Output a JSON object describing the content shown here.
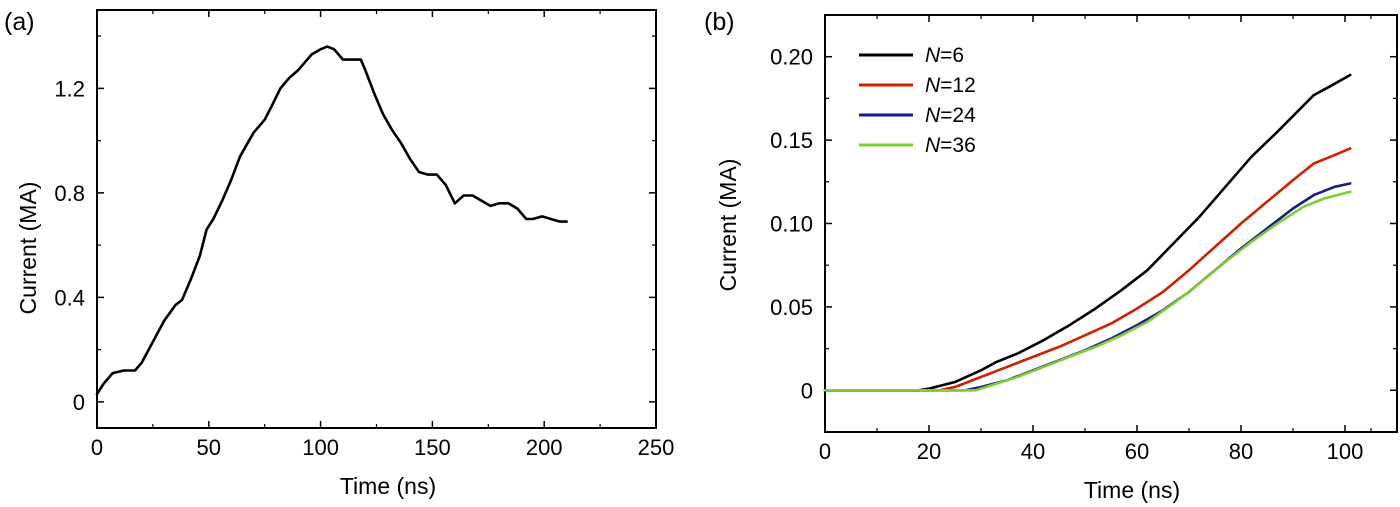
{
  "chart_data": [
    {
      "panel": "(a)",
      "type": "line",
      "xlabel": "Time (ns)",
      "ylabel": "Current (MA)",
      "xlim": [
        0,
        250
      ],
      "ylim": [
        -0.1,
        1.5
      ],
      "xticks": [
        0,
        50,
        100,
        150,
        200,
        250
      ],
      "xtick_labels": [
        "0",
        "50",
        "100",
        "150",
        "200",
        "250"
      ],
      "yticks": [
        0,
        0.4,
        0.8,
        1.2
      ],
      "ytick_labels": [
        "0",
        "0.4",
        "0.8",
        "1.2"
      ],
      "grid": false,
      "series": [
        {
          "color": "#000000",
          "x": [
            0,
            3,
            7,
            12,
            17,
            20,
            25,
            30,
            35,
            38,
            42,
            46,
            49,
            52,
            56,
            60,
            64,
            70,
            75,
            78,
            82,
            86,
            90,
            93,
            96,
            100,
            103,
            106,
            110,
            114,
            118,
            120,
            124,
            128,
            132,
            136,
            140,
            144,
            148,
            152,
            156,
            160,
            164,
            168,
            172,
            176,
            180,
            184,
            188,
            192,
            195,
            199,
            203,
            207,
            210
          ],
          "y": [
            0.03,
            0.07,
            0.11,
            0.12,
            0.12,
            0.15,
            0.23,
            0.31,
            0.37,
            0.39,
            0.47,
            0.56,
            0.66,
            0.7,
            0.77,
            0.85,
            0.94,
            1.03,
            1.08,
            1.13,
            1.2,
            1.24,
            1.27,
            1.3,
            1.33,
            1.35,
            1.36,
            1.35,
            1.31,
            1.31,
            1.31,
            1.27,
            1.18,
            1.1,
            1.04,
            0.99,
            0.93,
            0.88,
            0.87,
            0.87,
            0.83,
            0.76,
            0.79,
            0.79,
            0.77,
            0.75,
            0.76,
            0.76,
            0.74,
            0.7,
            0.7,
            0.71,
            0.7,
            0.69,
            0.69
          ]
        }
      ]
    },
    {
      "panel": "(b)",
      "type": "line",
      "xlabel": "Time (ns)",
      "ylabel": "Current (MA)",
      "xlim": [
        0,
        110
      ],
      "ylim": [
        -0.025,
        0.225
      ],
      "xticks": [
        0,
        20,
        40,
        60,
        80,
        100
      ],
      "xtick_labels": [
        "0",
        "20",
        "40",
        "60",
        "80",
        "100"
      ],
      "yticks": [
        0,
        0.05,
        0.1,
        0.15,
        0.2
      ],
      "ytick_labels": [
        "0",
        "0.05",
        "0.10",
        "0.15",
        "0.20"
      ],
      "grid": false,
      "legend_position": "top-left",
      "legend": [
        {
          "var": "N",
          "value": "=6"
        },
        {
          "var": "N",
          "value": "=12"
        },
        {
          "var": "N",
          "value": "=24"
        },
        {
          "var": "N",
          "value": "=36"
        }
      ],
      "series": [
        {
          "color": "#000000",
          "x": [
            0,
            18,
            20,
            25,
            30,
            33,
            37,
            42,
            47,
            52,
            57,
            62,
            67,
            72,
            77,
            82,
            87,
            94,
            97,
            101
          ],
          "y": [
            0,
            0,
            0.001,
            0.005,
            0.012,
            0.017,
            0.022,
            0.03,
            0.039,
            0.049,
            0.06,
            0.072,
            0.088,
            0.104,
            0.122,
            0.14,
            0.155,
            0.177,
            0.182,
            0.189
          ]
        },
        {
          "color": "#cc2200",
          "x": [
            0,
            22,
            25,
            30,
            35,
            40,
            45,
            50,
            55,
            60,
            65,
            70,
            75,
            80,
            85,
            90,
            94,
            98,
            101
          ],
          "y": [
            0,
            0,
            0.002,
            0.008,
            0.014,
            0.02,
            0.026,
            0.033,
            0.04,
            0.049,
            0.059,
            0.072,
            0.086,
            0.1,
            0.113,
            0.126,
            0.136,
            0.141,
            0.145
          ]
        },
        {
          "color": "#1a1a8c",
          "x": [
            0,
            27,
            30,
            35,
            40,
            45,
            50,
            55,
            60,
            65,
            70,
            75,
            80,
            85,
            90,
            94,
            98,
            101
          ],
          "y": [
            0,
            0,
            0.002,
            0.006,
            0.012,
            0.018,
            0.024,
            0.031,
            0.039,
            0.048,
            0.059,
            0.072,
            0.085,
            0.097,
            0.109,
            0.117,
            0.122,
            0.124
          ]
        },
        {
          "color": "#7fcc33",
          "x": [
            0,
            29,
            32,
            37,
            42,
            47,
            52,
            57,
            62,
            67,
            72,
            77,
            82,
            87,
            92,
            96,
            101
          ],
          "y": [
            0,
            0,
            0.003,
            0.008,
            0.014,
            0.02,
            0.026,
            0.033,
            0.041,
            0.052,
            0.064,
            0.077,
            0.089,
            0.1,
            0.11,
            0.115,
            0.119
          ]
        }
      ]
    }
  ]
}
